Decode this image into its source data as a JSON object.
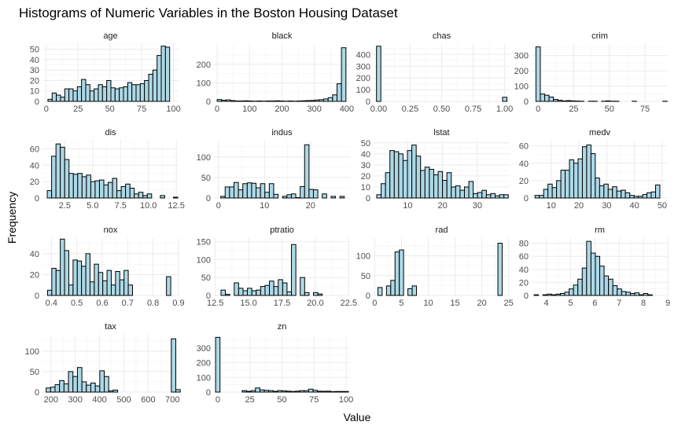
{
  "chart_data": {
    "type": "bar",
    "title": "Histograms of Numeric Variables in the Boston Housing Dataset",
    "xlabel": "Value",
    "ylabel": "Frequency",
    "bar_color": "#add8e6",
    "bar_border": "#000000",
    "grid": true,
    "facets": [
      {
        "name": "age",
        "xlim": [
          -3,
          104
        ],
        "ylim": [
          0,
          55
        ],
        "xticks": [
          "0",
          "25",
          "50",
          "75",
          "100"
        ],
        "xtick_values": [
          0,
          25,
          50,
          75,
          100
        ],
        "yticks": [
          "0",
          "10",
          "20",
          "30",
          "40",
          "50"
        ],
        "ytick_values": [
          0,
          10,
          20,
          30,
          40,
          50
        ],
        "bins": {
          "start": 1.3,
          "width": 3.3,
          "values": [
            2,
            8,
            6,
            4,
            12,
            12,
            10,
            14,
            21,
            16,
            10,
            12,
            16,
            14,
            20,
            13,
            12,
            13,
            14,
            18,
            16,
            16,
            17,
            20,
            26,
            30,
            44,
            53,
            52
          ]
        }
      },
      {
        "name": "black",
        "xlim": [
          -10,
          410
        ],
        "ylim": [
          0,
          310
        ],
        "xticks": [
          "0",
          "100",
          "200",
          "300",
          "400"
        ],
        "xtick_values": [
          0,
          100,
          200,
          300,
          400
        ],
        "yticks": [
          "0",
          "100",
          "200"
        ],
        "ytick_values": [
          0,
          100,
          200
        ],
        "bins": {
          "start": 0,
          "width": 13.7,
          "values": [
            10,
            6,
            8,
            4,
            2,
            2,
            3,
            2,
            1,
            2,
            1,
            2,
            2,
            3,
            2,
            1,
            2,
            1,
            2,
            3,
            4,
            5,
            7,
            9,
            13,
            20,
            35,
            95,
            290
          ]
        }
      },
      {
        "name": "chas",
        "xlim": [
          -0.04,
          1.04
        ],
        "ylim": [
          0,
          490
        ],
        "xticks": [
          "0.00",
          "0.25",
          "0.50",
          "0.75",
          "1.00"
        ],
        "xtick_values": [
          0,
          0.25,
          0.5,
          0.75,
          1
        ],
        "yticks": [
          "0",
          "100",
          "200",
          "300",
          "400"
        ],
        "ytick_values": [
          0,
          100,
          200,
          300,
          400
        ],
        "bins": {
          "start": -0.017,
          "width": 0.0345,
          "values": [
            471,
            0,
            0,
            0,
            0,
            0,
            0,
            0,
            0,
            0,
            0,
            0,
            0,
            0,
            0,
            0,
            0,
            0,
            0,
            0,
            0,
            0,
            0,
            0,
            0,
            0,
            0,
            0,
            0,
            35
          ]
        }
      },
      {
        "name": "crim",
        "xlim": [
          -4.5,
          91
        ],
        "ylim": [
          0,
          375
        ],
        "xticks": [
          "0",
          "25",
          "50",
          "75"
        ],
        "xtick_values": [
          0,
          25,
          50,
          75
        ],
        "yticks": [
          "0",
          "100",
          "200",
          "300"
        ],
        "ytick_values": [
          0,
          100,
          200,
          300
        ],
        "bins": {
          "start": -1.53,
          "width": 3.07,
          "values": [
            356,
            48,
            40,
            28,
            13,
            7,
            3,
            5,
            3,
            2,
            1,
            0,
            1,
            1,
            0,
            1,
            3,
            1,
            1,
            0,
            0,
            0,
            1,
            0,
            0,
            0,
            0,
            0,
            0,
            1
          ]
        }
      },
      {
        "name": "dis",
        "xlim": [
          0.5,
          12.7
        ],
        "ylim": [
          0,
          70
        ],
        "xticks": [
          "2.5",
          "5.0",
          "7.5",
          "10.0",
          "12.5"
        ],
        "xtick_values": [
          2.5,
          5,
          7.5,
          10,
          12.5
        ],
        "yticks": [
          "0",
          "20",
          "40",
          "60"
        ],
        "ytick_values": [
          0,
          20,
          40,
          60
        ],
        "bins": {
          "start": 0.93,
          "width": 0.39,
          "values": [
            9,
            51,
            66,
            62,
            47,
            30,
            29,
            30,
            26,
            28,
            20,
            21,
            22,
            16,
            19,
            24,
            9,
            14,
            17,
            12,
            5,
            7,
            3,
            5,
            0,
            0,
            3,
            0,
            0,
            1
          ]
        }
      },
      {
        "name": "indus",
        "xlim": [
          -1,
          28.6
        ],
        "ylim": [
          0,
          140
        ],
        "xticks": [
          "0",
          "10",
          "20"
        ],
        "xtick_values": [
          0,
          10,
          20
        ],
        "yticks": [
          "0",
          "50",
          "100"
        ],
        "ytick_values": [
          0,
          50,
          100
        ],
        "bins": {
          "start": -0.48,
          "width": 0.96,
          "values": [
            0,
            4,
            27,
            27,
            38,
            20,
            35,
            37,
            36,
            25,
            35,
            14,
            35,
            9,
            0,
            4,
            8,
            10,
            1,
            28,
            130,
            21,
            20,
            0,
            10,
            0,
            4,
            0,
            4
          ]
        }
      },
      {
        "name": "lstat",
        "xlim": [
          0.2,
          39.3
        ],
        "ylim": [
          0,
          52
        ],
        "xticks": [
          "10",
          "20",
          "30"
        ],
        "xtick_values": [
          10,
          20,
          30
        ],
        "yticks": [
          "0",
          "10",
          "20",
          "30",
          "40",
          "50"
        ],
        "ytick_values": [
          0,
          10,
          20,
          30,
          40,
          50
        ],
        "bins": {
          "start": 1.1,
          "width": 1.26,
          "values": [
            3,
            13,
            23,
            43,
            42,
            40,
            34,
            43,
            48,
            38,
            25,
            28,
            26,
            21,
            24,
            16,
            23,
            10,
            11,
            7,
            10,
            15,
            4,
            5,
            7,
            3,
            4,
            2,
            3,
            3
          ]
        }
      },
      {
        "name": "medv",
        "xlim": [
          3,
          52
        ],
        "ylim": [
          0,
          66
        ],
        "xticks": [
          "10",
          "20",
          "30",
          "40",
          "50"
        ],
        "xtick_values": [
          10,
          20,
          30,
          40,
          50
        ],
        "yticks": [
          "0",
          "20",
          "40",
          "60"
        ],
        "ytick_values": [
          0,
          20,
          40,
          60
        ],
        "bins": {
          "start": 4.2,
          "width": 1.55,
          "values": [
            3,
            3,
            10,
            16,
            12,
            20,
            32,
            32,
            44,
            40,
            45,
            59,
            61,
            51,
            23,
            14,
            16,
            10,
            13,
            8,
            9,
            6,
            3,
            2,
            2,
            4,
            6,
            7,
            15
          ]
        }
      },
      {
        "name": "nox",
        "xlim": [
          0.365,
          0.9
        ],
        "ylim": [
          0,
          55
        ],
        "xticks": [
          "0.4",
          "0.5",
          "0.6",
          "0.7",
          "0.8",
          "0.9"
        ],
        "xtick_values": [
          0.4,
          0.5,
          0.6,
          0.7,
          0.8,
          0.9
        ],
        "yticks": [
          "0",
          "20",
          "40"
        ],
        "ytick_values": [
          0,
          20,
          40
        ],
        "bins": {
          "start": 0.385,
          "width": 0.0167,
          "values": [
            5,
            26,
            24,
            54,
            43,
            10,
            34,
            33,
            28,
            40,
            13,
            30,
            22,
            14,
            24,
            10,
            23,
            15,
            24,
            10,
            0,
            0,
            0,
            0,
            0,
            0,
            0,
            0,
            18
          ]
        }
      },
      {
        "name": "ptratio",
        "xlim": [
          12.4,
          22.6
        ],
        "ylim": [
          0,
          160
        ],
        "xticks": [
          "12.5",
          "15.0",
          "17.5",
          "20.0",
          "22.5"
        ],
        "xtick_values": [
          12.5,
          15,
          17.5,
          20,
          22.5
        ],
        "yticks": [
          "0",
          "50",
          "100",
          "150"
        ],
        "ytick_values": [
          0,
          50,
          100,
          150
        ],
        "bins": {
          "start": 12.6,
          "width": 0.33,
          "values": [
            0,
            15,
            3,
            0,
            35,
            20,
            13,
            20,
            13,
            15,
            25,
            28,
            40,
            25,
            44,
            35,
            10,
            142,
            0,
            50,
            8,
            0,
            8,
            4
          ]
        }
      },
      {
        "name": "rad",
        "xlim": [
          -0.2,
          25.2
        ],
        "ylim": [
          0,
          145
        ],
        "xticks": [
          "0",
          "5",
          "10",
          "15",
          "20",
          "25"
        ],
        "xtick_values": [
          0,
          5,
          10,
          15,
          20,
          25
        ],
        "yticks": [
          "0",
          "50",
          "100"
        ],
        "ytick_values": [
          0,
          50,
          100
        ],
        "bins": {
          "start": 0.6,
          "width": 0.8,
          "values": [
            20,
            0,
            24,
            38,
            110,
            115,
            0,
            17,
            24,
            0,
            0,
            0,
            0,
            0,
            0,
            0,
            0,
            0,
            0,
            0,
            0,
            0,
            0,
            0,
            0,
            0,
            0,
            0,
            132
          ]
        }
      },
      {
        "name": "rm",
        "xlim": [
          3.4,
          9
        ],
        "ylim": [
          0,
          88
        ],
        "xticks": [
          "4",
          "5",
          "6",
          "7",
          "8",
          "9"
        ],
        "xtick_values": [
          4,
          5,
          6,
          7,
          8,
          9
        ],
        "yticks": [
          "0",
          "20",
          "40",
          "60",
          "80"
        ],
        "ytick_values": [
          0,
          20,
          40,
          60,
          80
        ],
        "bins": {
          "start": 3.5,
          "width": 0.18,
          "values": [
            1,
            0,
            1,
            2,
            1,
            2,
            3,
            5,
            10,
            16,
            25,
            42,
            83,
            65,
            60,
            45,
            30,
            25,
            15,
            10,
            6,
            5,
            3,
            4,
            1,
            3,
            1
          ]
        }
      },
      {
        "name": "tax",
        "xlim": [
          165,
          725
        ],
        "ylim": [
          0,
          140
        ],
        "xticks": [
          "200",
          "300",
          "400",
          "500",
          "600",
          "700"
        ],
        "xtick_values": [
          200,
          300,
          400,
          500,
          600,
          700
        ],
        "yticks": [
          "0",
          "50",
          "100"
        ],
        "ytick_values": [
          0,
          50,
          100
        ],
        "bins": {
          "start": 180,
          "width": 18.4,
          "values": [
            10,
            12,
            18,
            28,
            20,
            50,
            38,
            60,
            25,
            17,
            22,
            15,
            52,
            38,
            3,
            5,
            0,
            0,
            0,
            0,
            0,
            0,
            0,
            0,
            0,
            0,
            0,
            0,
            130,
            6
          ]
        }
      },
      {
        "name": "zn",
        "xlim": [
          -3,
          103
        ],
        "ylim": [
          0,
          390
        ],
        "xticks": [
          "0",
          "25",
          "50",
          "75",
          "100"
        ],
        "xtick_values": [
          0,
          25,
          50,
          75,
          100
        ],
        "yticks": [
          "0",
          "100",
          "200",
          "300"
        ],
        "ytick_values": [
          0,
          100,
          200,
          300
        ],
        "bins": {
          "start": -1.72,
          "width": 3.45,
          "values": [
            372,
            0,
            0,
            0,
            0,
            0,
            10,
            5,
            10,
            28,
            15,
            12,
            10,
            5,
            10,
            8,
            6,
            4,
            6,
            10,
            10,
            20,
            12,
            6,
            5,
            6,
            3,
            4,
            4,
            4
          ]
        }
      }
    ]
  }
}
